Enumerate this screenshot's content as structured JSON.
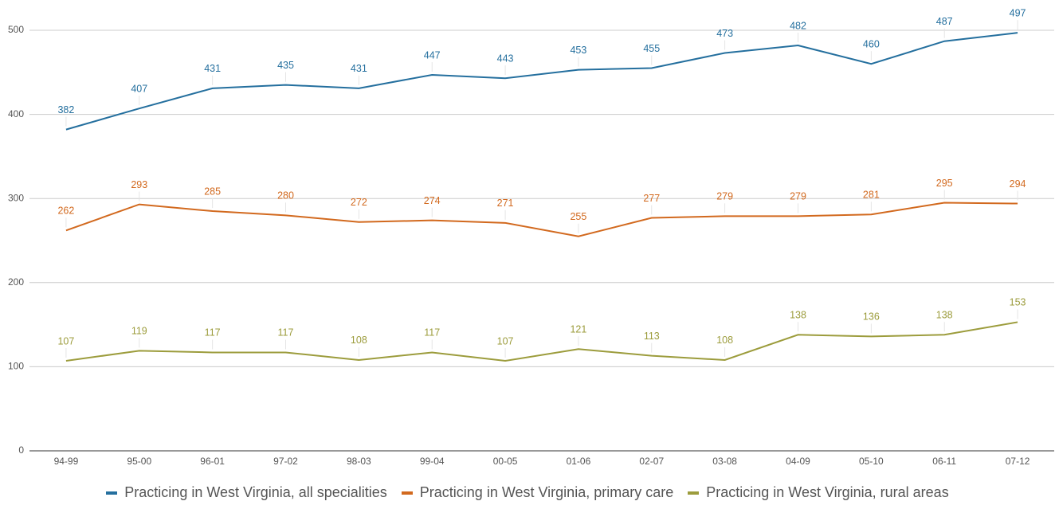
{
  "chart_data": {
    "type": "line",
    "categories": [
      "94-99",
      "95-00",
      "96-01",
      "97-02",
      "98-03",
      "99-04",
      "00-05",
      "01-06",
      "02-07",
      "03-08",
      "04-09",
      "05-10",
      "06-11",
      "07-12"
    ],
    "series": [
      {
        "name": "Practicing in West Virginia, all specialities",
        "color": "#246f9e",
        "values": [
          382,
          407,
          431,
          435,
          431,
          447,
          443,
          453,
          455,
          473,
          482,
          460,
          487,
          497
        ]
      },
      {
        "name": "Practicing in West Virginia, primary care",
        "color": "#d2691e",
        "values": [
          262,
          293,
          285,
          280,
          272,
          274,
          271,
          255,
          277,
          279,
          279,
          281,
          295,
          294
        ]
      },
      {
        "name": "Practicing in West Virginia, rural areas",
        "color": "#9c9c3c",
        "values": [
          107,
          119,
          117,
          117,
          108,
          117,
          107,
          121,
          113,
          108,
          138,
          136,
          138,
          153
        ]
      }
    ],
    "ylim": [
      0,
      525
    ],
    "yticks": [
      0,
      100,
      200,
      300,
      400,
      500
    ],
    "grid": true,
    "legend": "bottom",
    "data_labels": true
  }
}
